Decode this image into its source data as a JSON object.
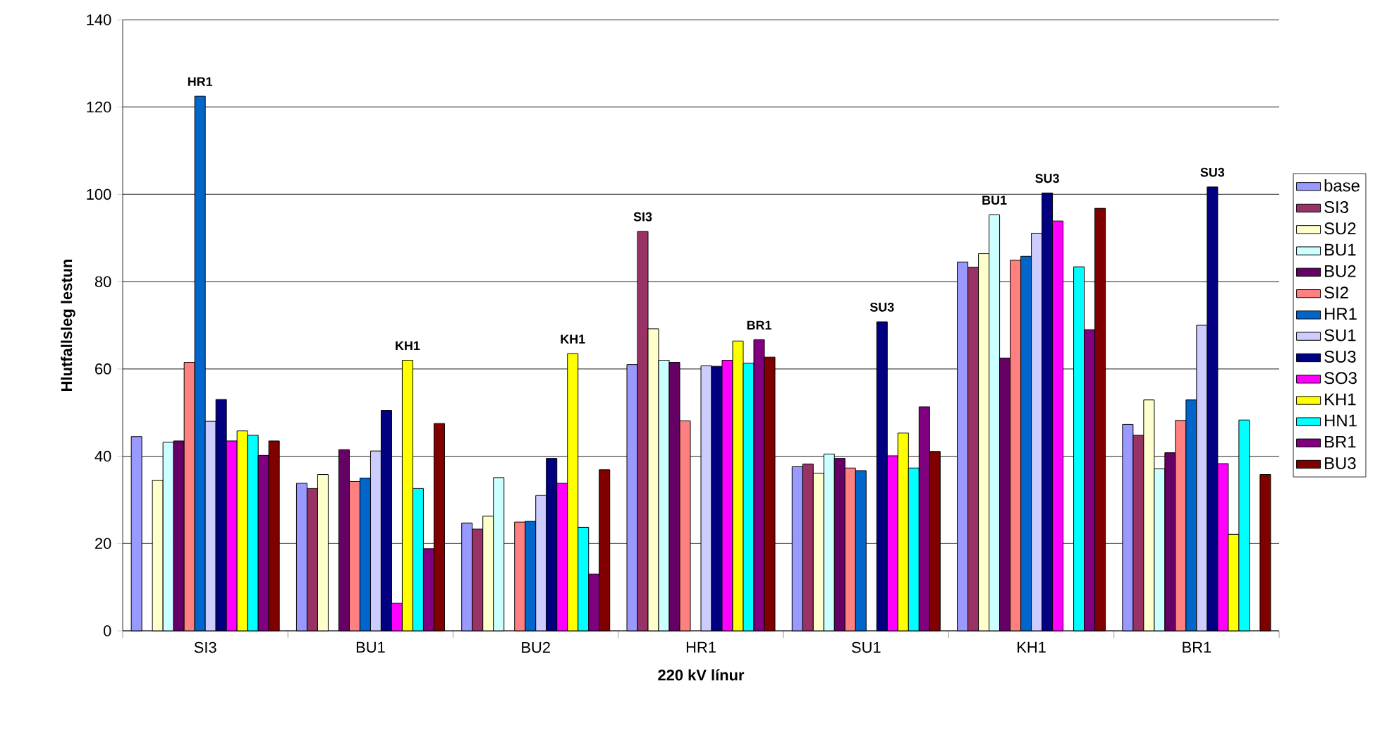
{
  "chart_data": {
    "type": "bar",
    "xlabel": "220 kV línur",
    "ylabel": "Hlutfallsleg lestun",
    "categories": [
      "SI3",
      "BU1",
      "BU2",
      "HR1",
      "SU1",
      "KH1",
      "BR1"
    ],
    "ylim": [
      0,
      140
    ],
    "yticks": [
      0,
      20,
      40,
      60,
      80,
      100,
      120,
      140
    ],
    "grid": "y",
    "legend": "right",
    "series": [
      {
        "name": "base",
        "color": "#9999ff",
        "values": [
          44.5,
          33.8,
          24.7,
          61,
          37.6,
          84.5,
          47.3
        ]
      },
      {
        "name": "SI3",
        "color": "#993366",
        "values": [
          null,
          32.6,
          23.3,
          91.5,
          38.2,
          83.3,
          44.8
        ]
      },
      {
        "name": "SU2",
        "color": "#ffffcc",
        "values": [
          34.5,
          35.8,
          26.3,
          69.2,
          36.1,
          86.4,
          52.9
        ]
      },
      {
        "name": "BU1",
        "color": "#ccffff",
        "values": [
          43.2,
          null,
          35.1,
          62,
          40.5,
          95.3,
          37.1
        ]
      },
      {
        "name": "BU2",
        "color": "#660066",
        "values": [
          43.5,
          41.5,
          null,
          61.5,
          39.5,
          62.5,
          40.8
        ]
      },
      {
        "name": "SI2",
        "color": "#ff8080",
        "values": [
          61.5,
          34.2,
          24.9,
          48.1,
          37.3,
          84.9,
          48.2
        ]
      },
      {
        "name": "HR1",
        "color": "#0066cc",
        "values": [
          122.5,
          35,
          25.1,
          null,
          36.7,
          85.8,
          52.9
        ]
      },
      {
        "name": "SU1",
        "color": "#ccccff",
        "values": [
          48,
          41.2,
          31,
          60.7,
          null,
          91.1,
          70
        ]
      },
      {
        "name": "SU3",
        "color": "#000080",
        "values": [
          53,
          50.5,
          39.5,
          60.6,
          70.8,
          100.3,
          101.7
        ]
      },
      {
        "name": "SO3",
        "color": "#ff00ff",
        "values": [
          43.5,
          6.3,
          33.8,
          62,
          40.1,
          93.9,
          38.3
        ]
      },
      {
        "name": "KH1",
        "color": "#ffff00",
        "values": [
          45.8,
          62,
          63.5,
          66.4,
          45.3,
          null,
          22.1
        ]
      },
      {
        "name": "HN1",
        "color": "#00ffff",
        "values": [
          44.8,
          32.6,
          23.7,
          61.3,
          37.3,
          83.4,
          48.3
        ]
      },
      {
        "name": "BR1",
        "color": "#800080",
        "values": [
          40.2,
          18.8,
          13,
          66.7,
          51.3,
          69,
          null
        ]
      },
      {
        "name": "BU3",
        "color": "#800000",
        "values": [
          43.5,
          47.5,
          36.9,
          62.7,
          41.1,
          96.8,
          35.8
        ]
      }
    ],
    "annotations": [
      "HR1",
      "KH1",
      "KH1",
      "SI3",
      "BR1",
      "SU3",
      "BU1",
      "SU3",
      "SU3"
    ]
  }
}
